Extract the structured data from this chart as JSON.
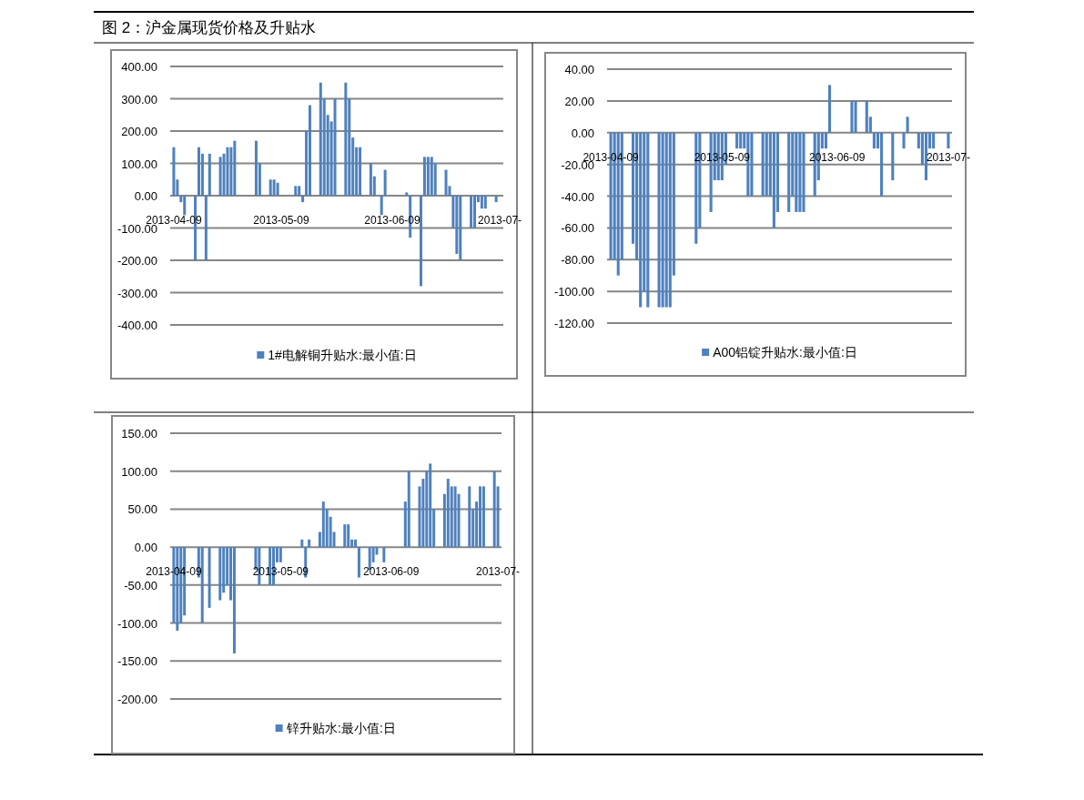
{
  "chart_data": [
    {
      "type": "bar",
      "title": "图 2：沪金属现货价格及升贴水",
      "grid": "y",
      "legend": "bottom",
      "xlim": [
        "2013-04-08",
        "2013-07-10"
      ],
      "xticks": [
        {
          "value": "2013-04-09",
          "label": "2013-04-09"
        },
        {
          "value": "2013-05-09",
          "label": "2013-05-09"
        },
        {
          "value": "2013-06-09",
          "label": "2013-06-09"
        },
        {
          "value": "2013-07-09",
          "label": "2013-07-"
        }
      ],
      "ylim": [
        -400,
        400
      ],
      "yticks": [
        {
          "value": -400,
          "label": "-400.00"
        },
        {
          "value": -300,
          "label": "-300.00"
        },
        {
          "value": -200,
          "label": "-200.00"
        },
        {
          "value": -100,
          "label": "-100.00"
        },
        {
          "value": 0,
          "label": "0.00"
        },
        {
          "value": 100,
          "label": "100.00"
        },
        {
          "value": 200,
          "label": "200.00"
        },
        {
          "value": 300,
          "label": "300.00"
        },
        {
          "value": 400,
          "label": "400.00"
        }
      ],
      "x": [
        "2013-04-09",
        "2013-04-10",
        "2013-04-11",
        "2013-04-12",
        "2013-04-15",
        "2013-04-16",
        "2013-04-17",
        "2013-04-18",
        "2013-04-19",
        "2013-04-22",
        "2013-04-23",
        "2013-04-24",
        "2013-04-25",
        "2013-04-26",
        "2013-05-02",
        "2013-05-03",
        "2013-05-06",
        "2013-05-07",
        "2013-05-08",
        "2013-05-13",
        "2013-05-14",
        "2013-05-15",
        "2013-05-16",
        "2013-05-17",
        "2013-05-20",
        "2013-05-21",
        "2013-05-22",
        "2013-05-23",
        "2013-05-24",
        "2013-05-27",
        "2013-05-28",
        "2013-05-29",
        "2013-05-30",
        "2013-05-31",
        "2013-06-03",
        "2013-06-04",
        "2013-06-06",
        "2013-06-07",
        "2013-06-13",
        "2013-06-14",
        "2013-06-17",
        "2013-06-18",
        "2013-06-19",
        "2013-06-20",
        "2013-06-21",
        "2013-06-24",
        "2013-06-25",
        "2013-06-26",
        "2013-06-27",
        "2013-06-28",
        "2013-07-01",
        "2013-07-02",
        "2013-07-03",
        "2013-07-04",
        "2013-07-05",
        "2013-07-08"
      ],
      "series": [
        {
          "name": "1#电解铜升贴水:最小值:日",
          "color": "#4f81bd",
          "values": [
            150,
            50,
            -20,
            -60,
            -200,
            150,
            130,
            -200,
            130,
            120,
            130,
            150,
            150,
            170,
            170,
            100,
            50,
            50,
            40,
            30,
            30,
            -20,
            200,
            280,
            350,
            300,
            250,
            230,
            300,
            350,
            300,
            180,
            150,
            150,
            100,
            60,
            -60,
            80,
            10,
            -130,
            -280,
            120,
            120,
            120,
            100,
            80,
            30,
            -100,
            -180,
            -200,
            -100,
            -100,
            -20,
            -40,
            -40,
            -20
          ]
        }
      ]
    },
    {
      "type": "bar",
      "grid": "y",
      "legend": "bottom",
      "xlim": [
        "2013-04-08",
        "2013-07-10"
      ],
      "xticks": [
        {
          "value": "2013-04-09",
          "label": "2013-04-09"
        },
        {
          "value": "2013-05-09",
          "label": "2013-05-09"
        },
        {
          "value": "2013-06-09",
          "label": "2013-06-09"
        },
        {
          "value": "2013-07-09",
          "label": "2013-07-"
        }
      ],
      "ylim": [
        -120,
        40
      ],
      "yticks": [
        {
          "value": -120,
          "label": "-120.00"
        },
        {
          "value": -100,
          "label": "-100.00"
        },
        {
          "value": -80,
          "label": "-80.00"
        },
        {
          "value": -60,
          "label": "-60.00"
        },
        {
          "value": -40,
          "label": "-40.00"
        },
        {
          "value": -20,
          "label": "-20.00"
        },
        {
          "value": 0,
          "label": "0.00"
        },
        {
          "value": 20,
          "label": "20.00"
        },
        {
          "value": 40,
          "label": "40.00"
        }
      ],
      "x": [
        "2013-04-09",
        "2013-04-10",
        "2013-04-11",
        "2013-04-12",
        "2013-04-15",
        "2013-04-16",
        "2013-04-17",
        "2013-04-18",
        "2013-04-19",
        "2013-04-22",
        "2013-04-23",
        "2013-04-24",
        "2013-04-25",
        "2013-04-26",
        "2013-05-02",
        "2013-05-03",
        "2013-05-06",
        "2013-05-07",
        "2013-05-08",
        "2013-05-09",
        "2013-05-10",
        "2013-05-13",
        "2013-05-14",
        "2013-05-15",
        "2013-05-16",
        "2013-05-17",
        "2013-05-20",
        "2013-05-21",
        "2013-05-22",
        "2013-05-23",
        "2013-05-24",
        "2013-05-27",
        "2013-05-28",
        "2013-05-29",
        "2013-05-30",
        "2013-05-31",
        "2013-06-03",
        "2013-06-04",
        "2013-06-05",
        "2013-06-06",
        "2013-06-07",
        "2013-06-13",
        "2013-06-14",
        "2013-06-17",
        "2013-06-18",
        "2013-06-19",
        "2013-06-20",
        "2013-06-21",
        "2013-06-24",
        "2013-06-27",
        "2013-06-28",
        "2013-07-01",
        "2013-07-02",
        "2013-07-03",
        "2013-07-04",
        "2013-07-05",
        "2013-07-09"
      ],
      "series": [
        {
          "name": "A00铝锭升贴水:最小值:日",
          "color": "#4f81bd",
          "values": [
            -80,
            -80,
            -90,
            -80,
            -70,
            -80,
            -110,
            -100,
            -110,
            -110,
            -110,
            -110,
            -110,
            -90,
            -70,
            -60,
            -50,
            -30,
            -30,
            -30,
            -20,
            -10,
            -10,
            -10,
            -40,
            -40,
            -40,
            -40,
            -40,
            -60,
            -50,
            -50,
            -40,
            -50,
            -50,
            -50,
            -40,
            -30,
            -10,
            -10,
            30,
            20,
            20,
            20,
            10,
            -10,
            -10,
            -40,
            -30,
            -10,
            10,
            -10,
            -20,
            -30,
            -10,
            -10,
            -10
          ]
        }
      ]
    },
    {
      "type": "bar",
      "grid": "y",
      "legend": "bottom",
      "xlim": [
        "2013-04-08",
        "2013-07-10"
      ],
      "xticks": [
        {
          "value": "2013-04-09",
          "label": "2013-04-09"
        },
        {
          "value": "2013-05-09",
          "label": "2013-05-09"
        },
        {
          "value": "2013-06-09",
          "label": "2013-06-09"
        },
        {
          "value": "2013-07-09",
          "label": "2013-07-"
        }
      ],
      "ylim": [
        -200,
        150
      ],
      "yticks": [
        {
          "value": -200,
          "label": "-200.00"
        },
        {
          "value": -150,
          "label": "-150.00"
        },
        {
          "value": -100,
          "label": "-100.00"
        },
        {
          "value": -50,
          "label": "-50.00"
        },
        {
          "value": 0,
          "label": "0.00"
        },
        {
          "value": 50,
          "label": "50.00"
        },
        {
          "value": 100,
          "label": "100.00"
        },
        {
          "value": 150,
          "label": "150.00"
        }
      ],
      "x": [
        "2013-04-09",
        "2013-04-10",
        "2013-04-11",
        "2013-04-12",
        "2013-04-16",
        "2013-04-17",
        "2013-04-19",
        "2013-04-22",
        "2013-04-23",
        "2013-04-24",
        "2013-04-25",
        "2013-04-26",
        "2013-05-02",
        "2013-05-03",
        "2013-05-06",
        "2013-05-07",
        "2013-05-08",
        "2013-05-09",
        "2013-05-15",
        "2013-05-16",
        "2013-05-17",
        "2013-05-20",
        "2013-05-21",
        "2013-05-22",
        "2013-05-23",
        "2013-05-24",
        "2013-05-27",
        "2013-05-28",
        "2013-05-29",
        "2013-05-30",
        "2013-05-31",
        "2013-06-03",
        "2013-06-04",
        "2013-06-05",
        "2013-06-07",
        "2013-06-13",
        "2013-06-14",
        "2013-06-17",
        "2013-06-18",
        "2013-06-19",
        "2013-06-20",
        "2013-06-21",
        "2013-06-24",
        "2013-06-25",
        "2013-06-26",
        "2013-06-27",
        "2013-06-28",
        "2013-07-01",
        "2013-07-02",
        "2013-07-03",
        "2013-07-04",
        "2013-07-05",
        "2013-07-08",
        "2013-07-09"
      ],
      "series": [
        {
          "name": "锌升贴水:最小值:日",
          "color": "#4f81bd",
          "values": [
            -100,
            -110,
            -100,
            -90,
            -40,
            -100,
            -80,
            -70,
            -60,
            -50,
            -70,
            -140,
            -30,
            -50,
            -50,
            -50,
            -20,
            -20,
            10,
            -40,
            10,
            20,
            60,
            50,
            40,
            20,
            30,
            30,
            10,
            10,
            -40,
            -30,
            -20,
            -10,
            -20,
            60,
            100,
            80,
            90,
            100,
            110,
            50,
            70,
            90,
            80,
            80,
            70,
            80,
            50,
            60,
            80,
            80,
            100,
            80
          ]
        }
      ]
    }
  ]
}
